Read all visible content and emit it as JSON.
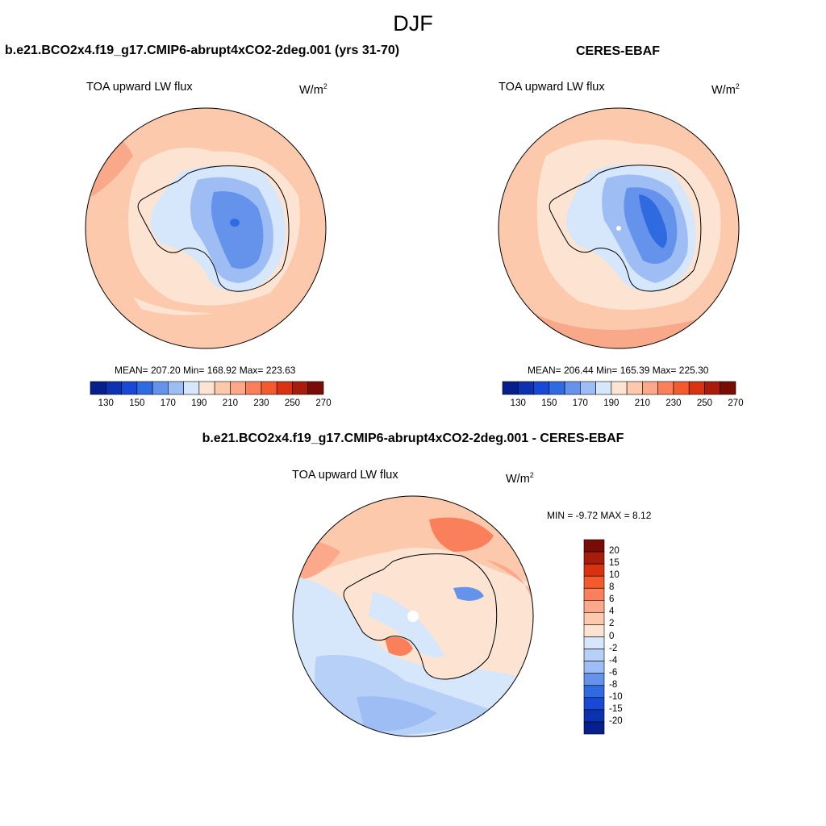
{
  "figure": {
    "title": "DJF"
  },
  "panels": [
    {
      "case": "b.e21.BCO2x4.f19_g17.CMIP6-abrupt4xCO2-2deg.001 (yrs 31-70)",
      "variable": "TOA upward LW flux",
      "units": "W/m",
      "units_sup": "2",
      "stats": "MEAN= 207.20  Min= 168.92  Max= 223.63"
    },
    {
      "case": "CERES-EBAF",
      "variable": "TOA upward LW flux",
      "units": "W/m",
      "units_sup": "2",
      "stats": "MEAN= 206.44  Min= 165.39  Max= 225.30"
    },
    {
      "case": "b.e21.BCO2x4.f19_g17.CMIP6-abrupt4xCO2-2deg.001 - CERES-EBAF",
      "variable": "TOA upward LW flux",
      "units": "W/m",
      "units_sup": "2",
      "stats": "MIN =  -9.72 MAX =   8.12"
    }
  ],
  "colorbar_abs": {
    "labels": [
      "130",
      "150",
      "170",
      "190",
      "210",
      "230",
      "250",
      "270"
    ],
    "colors": [
      "#061f8c",
      "#0c32b0",
      "#1749d6",
      "#2f6ae0",
      "#6593ec",
      "#9dbdf4",
      "#d6e6fb",
      "#fde4d2",
      "#fdc9ad",
      "#fca98b",
      "#f9805a",
      "#f35a2e",
      "#d93210",
      "#a81c0c",
      "#7a0c07"
    ]
  },
  "colorbar_diff": {
    "labels": [
      "20",
      "15",
      "10",
      "8",
      "6",
      "4",
      "2",
      "0",
      "-2",
      "-4",
      "-6",
      "-8",
      "-10",
      "-15",
      "-20"
    ],
    "colors": [
      "#7a0c07",
      "#a81c0c",
      "#d93210",
      "#f35a2e",
      "#f9805a",
      "#fca98b",
      "#fdc9ad",
      "#fde4d2",
      "#d6e6fb",
      "#b7d0f7",
      "#9dbdf4",
      "#6593ec",
      "#2f6ae0",
      "#1749d6",
      "#0c32b0",
      "#061f8c"
    ]
  },
  "colors": {
    "ocean_warm": "#fcc9ad",
    "shelf_light": "#fde4d2",
    "ice_pale": "#d6e6fb",
    "ice_mid": "#9dbdf4",
    "ice_deep": "#6593ec",
    "ice_core": "#2f6ae0"
  }
}
